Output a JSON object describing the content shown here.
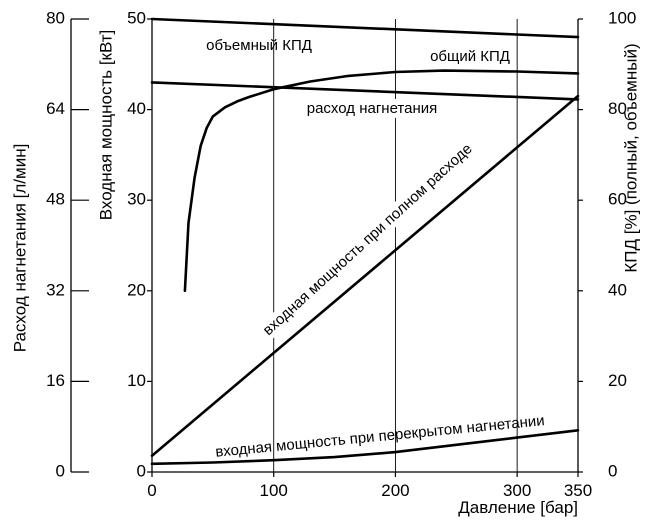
{
  "chart_data": {
    "type": "line",
    "xlabel": "Давление [бар]",
    "xlim": [
      0,
      350
    ],
    "x_ticks": [
      0,
      100,
      200,
      300,
      350
    ],
    "y_axes": {
      "flow": {
        "label": "Расход нагнетания [л/мин]",
        "lim": [
          0,
          80
        ],
        "ticks": [
          0,
          16,
          32,
          48,
          64,
          80
        ]
      },
      "power": {
        "label": "Входная мощность [кВт]",
        "lim": [
          0,
          50
        ],
        "ticks": [
          0,
          10,
          20,
          30,
          40,
          50
        ]
      },
      "efficiency": {
        "label": "КПД [%] (полный, объемный)",
        "lim": [
          0,
          100
        ],
        "ticks": [
          0,
          20,
          40,
          60,
          80,
          100
        ]
      }
    },
    "grid": {
      "vertical_at_x": [
        100,
        200,
        300
      ]
    },
    "series": [
      {
        "name": "объемный КПД",
        "axis": "efficiency",
        "x": [
          0,
          350
        ],
        "y": [
          100,
          96
        ]
      },
      {
        "name": "общий КПД",
        "axis": "efficiency",
        "x": [
          27,
          30,
          35,
          40,
          45,
          50,
          60,
          70,
          80,
          100,
          130,
          160,
          200,
          240,
          300,
          350
        ],
        "y": [
          40,
          55,
          65,
          72,
          76,
          78.5,
          80.5,
          81.8,
          82.8,
          84.5,
          86.2,
          87.4,
          88.3,
          88.6,
          88.4,
          88
        ]
      },
      {
        "name": "расход нагнетания",
        "axis": "flow",
        "x": [
          0,
          350
        ],
        "y": [
          68.8,
          65.8
        ]
      },
      {
        "name": "входная мощность при полном расходе",
        "axis": "power",
        "x": [
          0,
          350
        ],
        "y": [
          1.8,
          41.5
        ]
      },
      {
        "name": "входная мощность при перекрытом нагнетании",
        "axis": "power",
        "x": [
          0,
          50,
          100,
          150,
          200,
          250,
          300,
          350
        ],
        "y": [
          0.9,
          1.05,
          1.3,
          1.65,
          2.2,
          3.0,
          3.8,
          4.6
        ]
      }
    ]
  }
}
